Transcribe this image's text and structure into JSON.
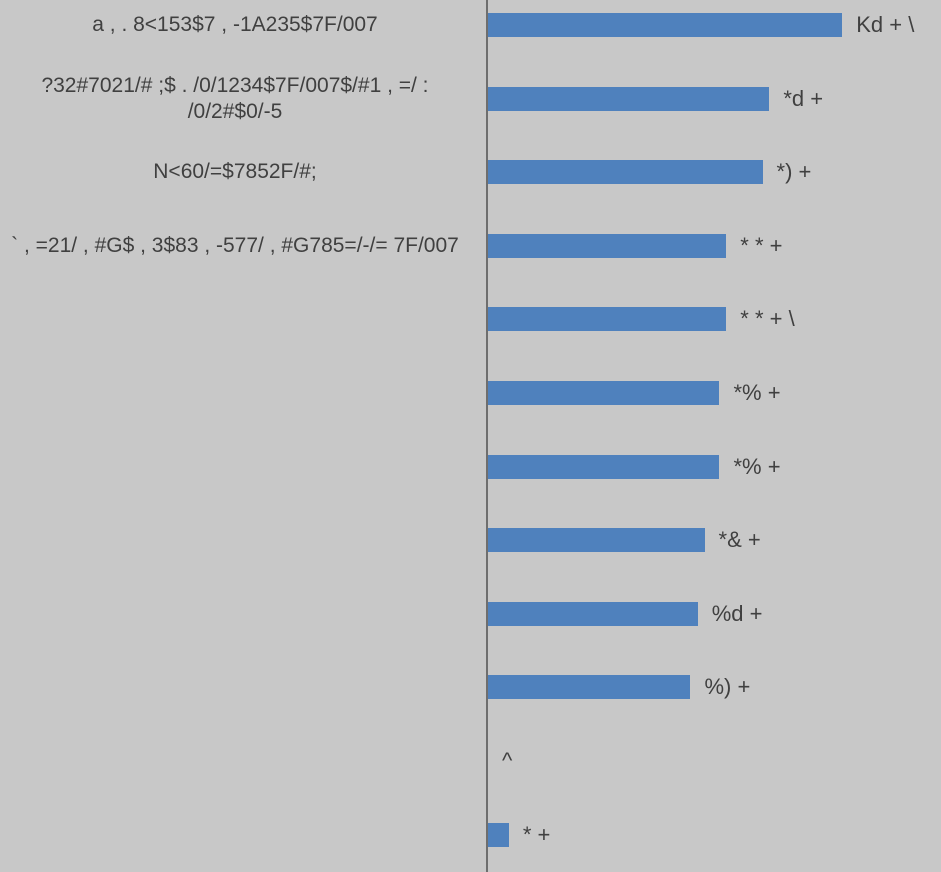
{
  "chart_data": {
    "type": "barh",
    "categories": [
      "a , . 8<153$7 , -1A235$7F/007",
      "?32#7021/# ;$ . /0/1234$7F/007$/#1 , =/ : /0/2#$0/-5",
      "N<60/=$7852F/#;",
      "` , =21/ , #G$ , 3$83 , -577/ , #G785=/-/= 7F/007",
      null,
      null,
      null,
      null,
      null,
      null,
      null,
      null
    ],
    "values": [
      78.2,
      62.1,
      60.6,
      52.6,
      52.6,
      51.1,
      51.1,
      47.8,
      46.3,
      44.7,
      0,
      4.6
    ],
    "value_labels": [
      "Kd + \\",
      "*d +",
      "*) +",
      "* * +",
      "* * + \\",
      "*% +",
      "*% +",
      "*& +",
      "%d +",
      "%) +",
      "^",
      "* +"
    ],
    "color": "#4f81bd",
    "xlim": [
      0,
      100
    ]
  }
}
